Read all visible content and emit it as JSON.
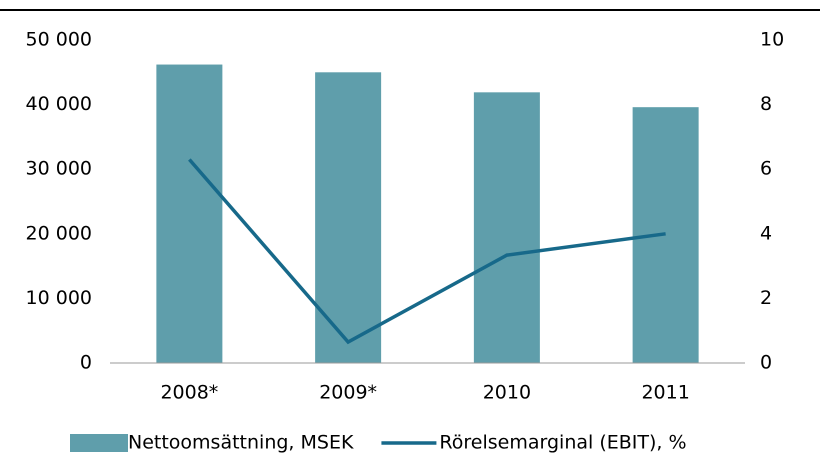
{
  "chart_data": {
    "type": "bar",
    "categories": [
      "2008*",
      "2009*",
      "2010",
      "2011"
    ],
    "series": [
      {
        "name": "Nettoomsättning, MSEK",
        "color": "#5f9eab",
        "type": "bar",
        "values": [
          46200,
          45000,
          41900,
          39600
        ]
      },
      {
        "name": "Rörelsemarginal (EBIT), %",
        "color": "#17698a",
        "type": "line",
        "axis": "y2",
        "values": [
          6.3,
          0.65,
          3.34,
          4.0
        ]
      }
    ],
    "ylim": [
      0,
      50000
    ],
    "yticks": [
      0,
      {
        "value": 10000,
        "label": "10 000"
      },
      {
        "value": 20000,
        "label": "20 000"
      },
      {
        "value": 30000,
        "label": "30 000"
      },
      {
        "value": 40000,
        "label": "40 000"
      },
      {
        "value": 50000,
        "label": "50 000"
      }
    ],
    "y2lim": [
      0,
      10
    ],
    "y2ticks": [
      0,
      2,
      4,
      6,
      8,
      10
    ],
    "legend": "bottom"
  }
}
